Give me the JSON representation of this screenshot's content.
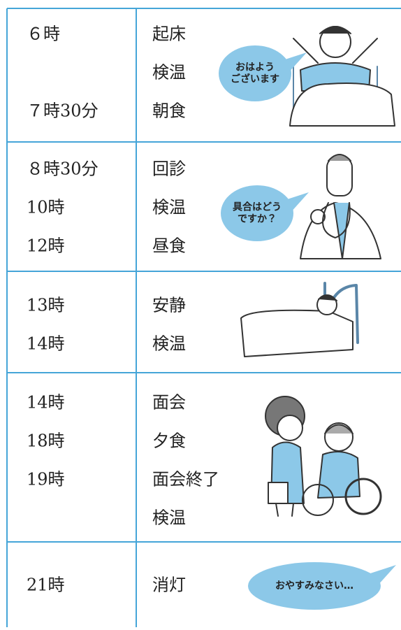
{
  "rows": [
    {
      "times": [
        "６時",
        null,
        "７時30分"
      ],
      "activities": [
        "起床",
        "検温",
        "朝食"
      ],
      "speech": [
        "おはよう",
        "ございます"
      ]
    },
    {
      "times": [
        "８時30分",
        "10時",
        "12時"
      ],
      "activities": [
        "回診",
        "検温",
        "昼食"
      ],
      "speech": [
        "具合はどう",
        "ですか？"
      ]
    },
    {
      "times": [
        "13時",
        "14時"
      ],
      "activities": [
        "安静",
        "検温"
      ]
    },
    {
      "times": [
        "14時",
        "18時",
        "19時"
      ],
      "activities": [
        "面会",
        "夕食",
        "面会終了",
        "検温"
      ]
    },
    {
      "times": [
        "21時"
      ],
      "activities": [
        "消灯"
      ],
      "speech": [
        "おやすみなさい…"
      ]
    }
  ]
}
